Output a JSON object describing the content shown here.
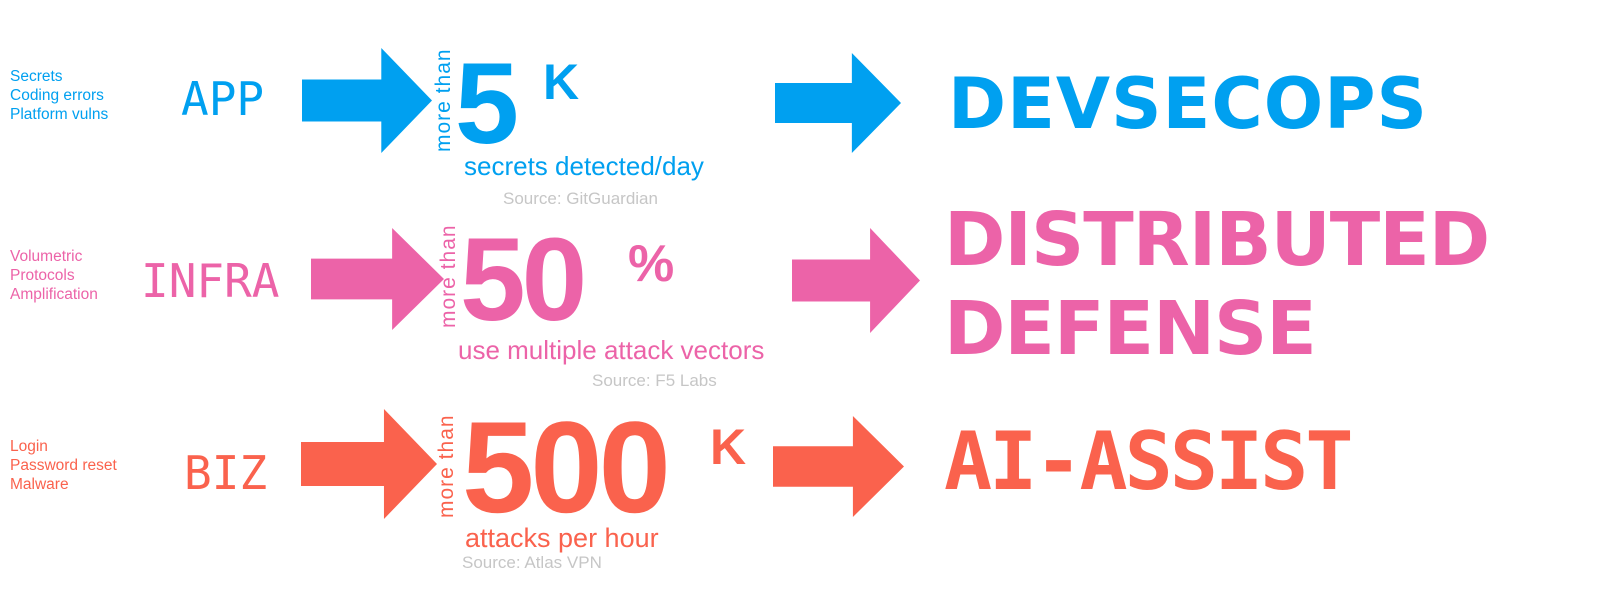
{
  "palette": {
    "background": "#FFFFFF",
    "source_text_color": "#C6C6C6"
  },
  "rows": [
    {
      "id": "app",
      "color": "#00A0F0",
      "threats": [
        "Secrets",
        "Coding errors",
        "Platform vulns"
      ],
      "category": "APP",
      "qualifier": "more than",
      "stat_value": "5",
      "stat_unit": "K",
      "caption": "secrets detected/day",
      "source": "Source: GitGuardian",
      "outcome_lines": [
        "DEVSECOPS"
      ]
    },
    {
      "id": "infra",
      "color": "#EC63A8",
      "threats": [
        "Volumetric",
        "Protocols",
        "Amplification"
      ],
      "category": "INFRA",
      "qualifier": "more than",
      "stat_value": "50",
      "stat_unit": "%",
      "caption": "use multiple attack vectors",
      "source": "Source: F5 Labs",
      "outcome_lines": [
        "DISTRIBUTED",
        "DEFENSE"
      ]
    },
    {
      "id": "biz",
      "color": "#FA624D",
      "threats": [
        "Login",
        "Password reset",
        "Malware"
      ],
      "category": "BIZ",
      "qualifier": "more than",
      "stat_value": "500",
      "stat_unit": "K",
      "caption": "attacks per hour",
      "source": "Source: Atlas VPN",
      "outcome_lines": [
        "AI-ASSIST"
      ]
    }
  ]
}
